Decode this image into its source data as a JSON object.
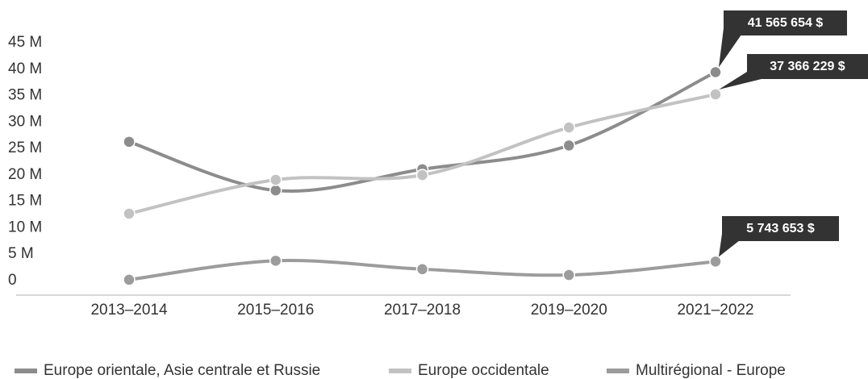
{
  "chart_data": {
    "type": "line",
    "categories": [
      "2013–2014",
      "2015–2016",
      "2017–2018",
      "2019–2020",
      "2021–2022"
    ],
    "series": [
      {
        "name": "Europe orientale, Asie centrale et Russie",
        "color": "#8c8c8c",
        "values": [
          28400000,
          19200000,
          23200000,
          27700000,
          41565654
        ],
        "value_labels": [
          null,
          null,
          null,
          null,
          "41 565 654 $"
        ]
      },
      {
        "name": "Europe occidentale",
        "color": "#c2c2c2",
        "values": [
          14800000,
          21200000,
          22100000,
          31100000,
          37366229
        ],
        "value_labels": [
          null,
          null,
          null,
          null,
          "37 366 229 $"
        ]
      },
      {
        "name": "Multirégional - Europe",
        "color": "#9c9c9c",
        "values": [
          2300000,
          5900000,
          4300000,
          3200000,
          5743653
        ],
        "value_labels": [
          null,
          null,
          null,
          null,
          "5 743 653 $"
        ]
      }
    ],
    "ylim": [
      0,
      45000000
    ],
    "yticks": [
      {
        "value": 0,
        "label": "0"
      },
      {
        "value": 5000000,
        "label": "5 M"
      },
      {
        "value": 10000000,
        "label": "10 M"
      },
      {
        "value": 15000000,
        "label": "15 M"
      },
      {
        "value": 20000000,
        "label": "20 M"
      },
      {
        "value": 25000000,
        "label": "25 M"
      },
      {
        "value": 30000000,
        "label": "30 M"
      },
      {
        "value": 35000000,
        "label": "35 M"
      },
      {
        "value": 40000000,
        "label": "40 M"
      },
      {
        "value": 45000000,
        "label": "45 M"
      }
    ],
    "grid": false,
    "legend": "bottom"
  }
}
